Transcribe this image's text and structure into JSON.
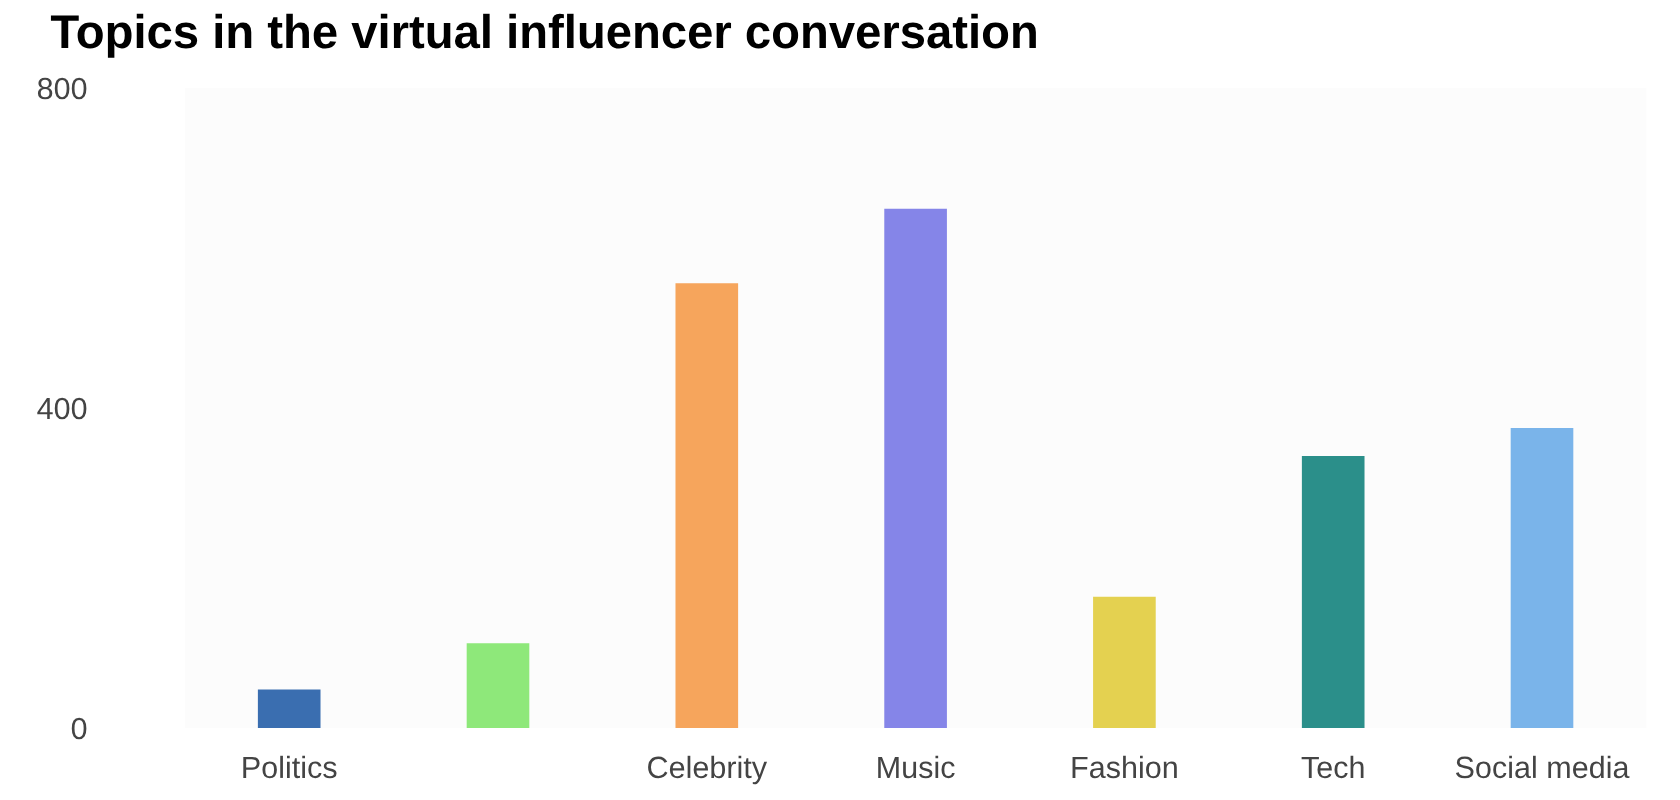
{
  "chart_data": {
    "type": "bar",
    "title": "Topics in the virtual influencer conversation",
    "categories": [
      "Politics",
      null,
      "Celebrity",
      "Music",
      "Fashion",
      "Tech",
      "Social media"
    ],
    "values": [
      48,
      106,
      556,
      649,
      164,
      340,
      375
    ],
    "colors": [
      "#3a6eb0",
      "#8ee87a",
      "#f6a55c",
      "#8585e8",
      "#e4d150",
      "#2b8f8a",
      "#7ab4ea"
    ],
    "ylim": [
      0,
      800
    ],
    "yticks": [
      0,
      400,
      800
    ],
    "grid": false,
    "legend": false
  }
}
